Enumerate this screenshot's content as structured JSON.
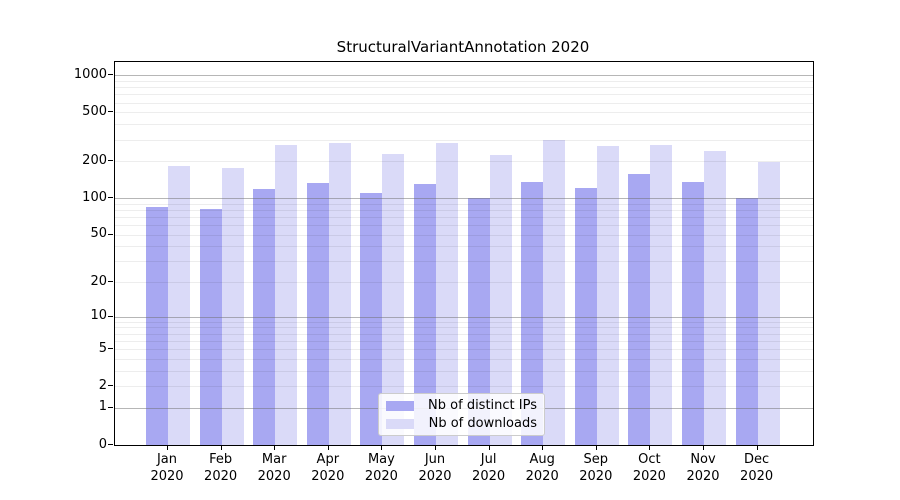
{
  "title": "StructuralVariantAnnotation 2020",
  "chart_data": {
    "type": "bar",
    "title": "StructuralVariantAnnotation 2020",
    "categories": [
      "Jan",
      "Feb",
      "Mar",
      "Apr",
      "May",
      "Jun",
      "Jul",
      "Aug",
      "Sep",
      "Oct",
      "Nov",
      "Dec"
    ],
    "category_year": "2020",
    "series": [
      {
        "name": "Nb of distinct IPs",
        "color": "#a8a8f2",
        "values": [
          84,
          82,
          118,
          132,
          110,
          131,
          101,
          135,
          121,
          157,
          135,
          101
        ]
      },
      {
        "name": "Nb of downloads",
        "color": "#dadaf8",
        "values": [
          183,
          176,
          272,
          281,
          228,
          284,
          226,
          300,
          269,
          272,
          244,
          196
        ]
      }
    ],
    "yscale": "log1p",
    "y_ticks": [
      0,
      1,
      2,
      5,
      10,
      20,
      50,
      100,
      200,
      500,
      1000
    ],
    "ylim": [
      0,
      1265
    ],
    "xlabel": "",
    "ylabel": "",
    "grid": "minor log gridlines, major lines at powers of 10, drawn over bars",
    "legend_position": "lower-center"
  },
  "axes": {
    "spine_color": "#000000",
    "tick_color": "#000000",
    "major_grid_color": "#b0b0b0",
    "minor_grid_color": "#ebebeb"
  }
}
